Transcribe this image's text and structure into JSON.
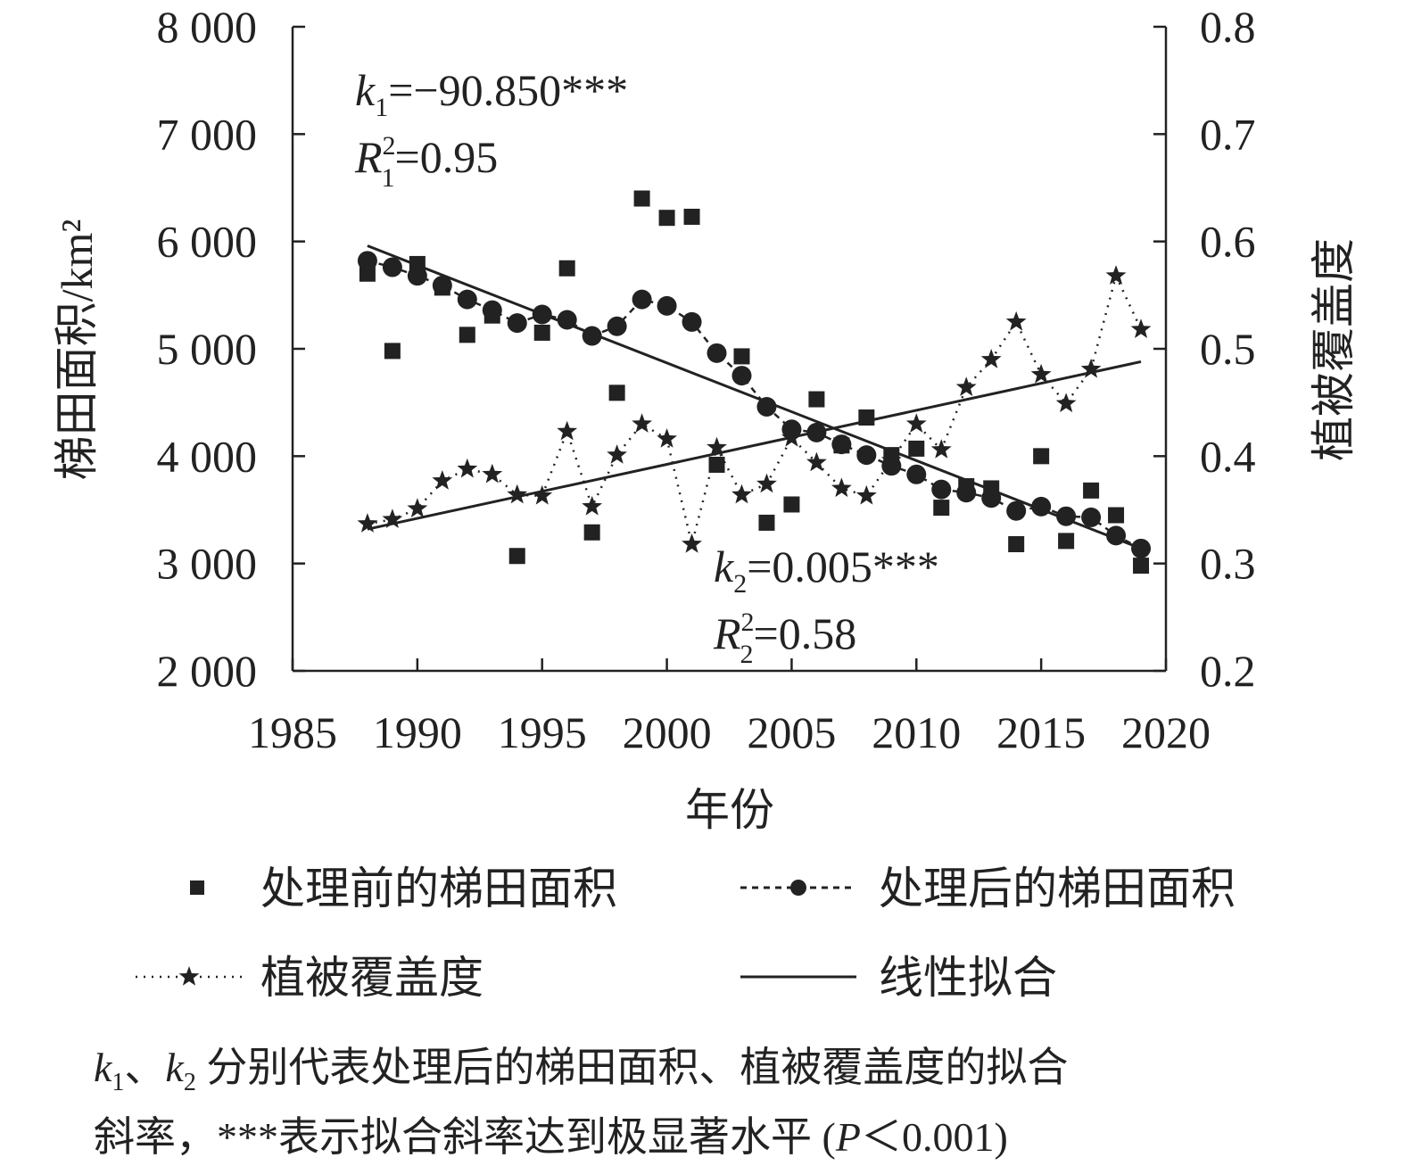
{
  "chart_data": {
    "type": "scatter",
    "xlabel": "年份",
    "ylabel_left": "梯田面积/km²",
    "ylabel_right": "植被覆盖度",
    "x_ticks": [
      "1985",
      "1990",
      "1995",
      "2000",
      "2005",
      "2010",
      "2015",
      "2020"
    ],
    "y_left_ticks": [
      "2 000",
      "3 000",
      "4 000",
      "5 000",
      "6 000",
      "7 000",
      "8 000"
    ],
    "y_right_ticks": [
      "0.2",
      "0.3",
      "0.4",
      "0.5",
      "0.6",
      "0.7",
      "0.8"
    ],
    "xlim": [
      1985,
      2020
    ],
    "ylim_left": [
      2000,
      8000
    ],
    "ylim_right": [
      0.2,
      0.8
    ],
    "series": [
      {
        "name": "处理前的梯田面积",
        "marker": "square",
        "axis": "left",
        "x": [
          1988,
          1989,
          1990,
          1991,
          1992,
          1993,
          1994,
          1995,
          1996,
          1997,
          1998,
          1999,
          2000,
          2001,
          2002,
          2003,
          2004,
          2005,
          2006,
          2007,
          2008,
          2009,
          2010,
          2011,
          2012,
          2013,
          2014,
          2015,
          2016,
          2017,
          2018,
          2019
        ],
        "y": [
          5700,
          4980,
          5790,
          5570,
          5130,
          5310,
          3070,
          5150,
          5750,
          3290,
          4590,
          6400,
          6220,
          6230,
          3920,
          4930,
          3380,
          3550,
          4530,
          4100,
          4360,
          4010,
          4070,
          3520,
          3720,
          3700,
          3180,
          4000,
          3210,
          3680,
          3450,
          2980
        ]
      },
      {
        "name": "处理后的梯田面积",
        "marker": "circle",
        "line": "dashed",
        "axis": "left",
        "x": [
          1988,
          1989,
          1990,
          1991,
          1992,
          1993,
          1994,
          1995,
          1996,
          1997,
          1998,
          1999,
          2000,
          2001,
          2002,
          2003,
          2004,
          2005,
          2006,
          2007,
          2008,
          2009,
          2010,
          2011,
          2012,
          2013,
          2014,
          2015,
          2016,
          2017,
          2018,
          2019
        ],
        "y": [
          5820,
          5760,
          5680,
          5590,
          5460,
          5360,
          5240,
          5320,
          5270,
          5120,
          5210,
          5460,
          5400,
          5250,
          4960,
          4750,
          4460,
          4250,
          4220,
          4110,
          4010,
          3910,
          3830,
          3690,
          3660,
          3610,
          3490,
          3530,
          3440,
          3430,
          3260,
          3140
        ]
      },
      {
        "name": "植被覆盖度",
        "marker": "star",
        "line": "dotted",
        "axis": "right",
        "x": [
          1988,
          1989,
          1990,
          1991,
          1992,
          1993,
          1994,
          1995,
          1996,
          1997,
          1998,
          1999,
          2000,
          2001,
          2002,
          2003,
          2004,
          2005,
          2006,
          2007,
          2008,
          2009,
          2010,
          2011,
          2012,
          2013,
          2014,
          2015,
          2016,
          2017,
          2018,
          2019
        ],
        "y": [
          0.337,
          0.341,
          0.351,
          0.377,
          0.388,
          0.383,
          0.364,
          0.363,
          0.423,
          0.353,
          0.401,
          0.43,
          0.416,
          0.318,
          0.408,
          0.364,
          0.374,
          0.417,
          0.394,
          0.37,
          0.363,
          0.396,
          0.43,
          0.406,
          0.464,
          0.49,
          0.525,
          0.476,
          0.449,
          0.481,
          0.568,
          0.518
        ]
      }
    ],
    "fits": [
      {
        "name": "线性拟合",
        "axis": "left",
        "x": [
          1988,
          2019
        ],
        "y": [
          5960,
          3140
        ]
      },
      {
        "name": "线性拟合",
        "axis": "right",
        "x": [
          1988,
          2019
        ],
        "y": [
          0.332,
          0.488
        ]
      }
    ],
    "annotations": {
      "k1": {
        "var": "k",
        "sub": "1",
        "value": "=−90.850***"
      },
      "r1": {
        "var": "R",
        "sub": "1",
        "sup": "2",
        "value": "=0.95"
      },
      "k2": {
        "var": "k",
        "sub": "2",
        "value": "=0.005***"
      },
      "r2": {
        "var": "R",
        "sub": "2",
        "sup": "2",
        "value": "=0.58"
      }
    },
    "legend": [
      "处理前的梯田面积",
      "处理后的梯田面积",
      "植被覆盖度",
      "线性拟合"
    ],
    "legend_placement": "bottom",
    "note": {
      "k1": "k",
      "k1_sub": "1",
      "sep": "、",
      "k2": "k",
      "k2_sub": "2",
      "line1_rest": " 分别代表处理后的梯田面积、植被覆盖度的拟合",
      "line2_a": "斜率，***表示拟合斜率达到极显著水平 (",
      "line2_p": "P",
      "line2_b": "＜0.001)"
    },
    "grid": false
  }
}
